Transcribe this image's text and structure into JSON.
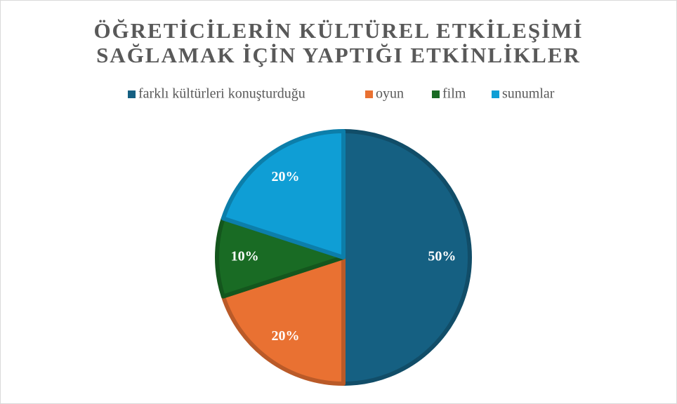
{
  "chart_data": {
    "type": "pie",
    "title": [
      "ÖĞRETİCİLERİN KÜLTÜREL ETKİLEŞİMİ",
      "SAĞLAMAK İÇİN YAPTIĞI ETKİNLİKLER"
    ],
    "categories": [
      "farklı kültürleri konuşturduğu",
      "oyun",
      "film",
      "sunumlar"
    ],
    "values": [
      50,
      20,
      10,
      20
    ],
    "value_labels": [
      "50%",
      "20%",
      "10%",
      "20%"
    ],
    "colors": [
      "#156082",
      "#e97132",
      "#196b24",
      "#0f9ed5"
    ],
    "legend": "top"
  }
}
